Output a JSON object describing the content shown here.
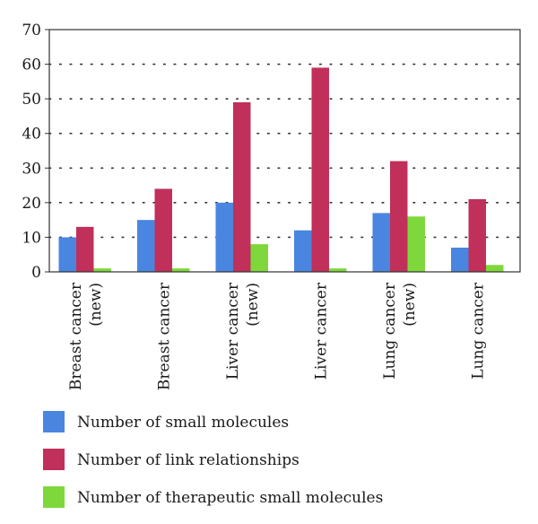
{
  "chart_data": {
    "type": "bar",
    "categories": [
      [
        "Breast cancer",
        "(new)"
      ],
      [
        "Breast cancer"
      ],
      [
        "Liver cancer",
        "(new)"
      ],
      [
        "Liver cancer"
      ],
      [
        "Lung cancer",
        "(new)"
      ],
      [
        "Lung cancer"
      ]
    ],
    "series": [
      {
        "name": "Number of small molecules",
        "color": "#4a86e0",
        "values": [
          10,
          15,
          20,
          12,
          17,
          7
        ]
      },
      {
        "name": "Number of link relationships",
        "color": "#c0305a",
        "values": [
          13,
          24,
          49,
          59,
          32,
          21
        ]
      },
      {
        "name": "Number of therapeutic small molecules",
        "color": "#7ed83c",
        "values": [
          1,
          1,
          8,
          1,
          16,
          2
        ]
      }
    ],
    "ylim": [
      0,
      70
    ],
    "yticks": [
      0,
      10,
      20,
      30,
      40,
      50,
      60,
      70
    ],
    "grid": "horizontal dotted",
    "legend_position": "bottom",
    "title": "",
    "xlabel": "",
    "ylabel": ""
  }
}
